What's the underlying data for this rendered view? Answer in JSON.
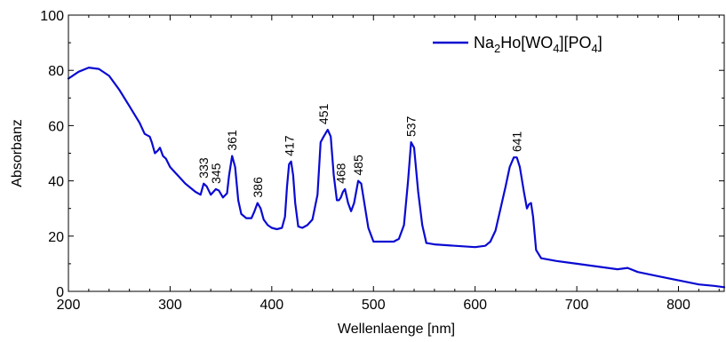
{
  "chart_data": {
    "type": "line",
    "title": "",
    "xlabel": "Wellenlaenge [nm]",
    "ylabel": "Absorbanz",
    "xlim": [
      200,
      845
    ],
    "ylim": [
      0,
      100
    ],
    "x_ticks": [
      200,
      300,
      400,
      500,
      600,
      700,
      800
    ],
    "y_ticks": [
      0,
      20,
      40,
      60,
      80,
      100
    ],
    "x_tick_labels": [
      "200",
      "300",
      "400",
      "500",
      "600",
      "700",
      "800"
    ],
    "y_tick_labels": [
      "0",
      "20",
      "40",
      "60",
      "80",
      "100"
    ],
    "grid": false,
    "legend": {
      "position": "top-right",
      "parts": [
        {
          "t": "Na",
          "sub": false
        },
        {
          "t": "2",
          "sub": true
        },
        {
          "t": "Ho[WO",
          "sub": false
        },
        {
          "t": "4",
          "sub": true
        },
        {
          "t": "][PO",
          "sub": false
        },
        {
          "t": "4",
          "sub": true
        },
        {
          "t": "]",
          "sub": false
        }
      ]
    },
    "series": [
      {
        "color": "#0a0ad2",
        "points": [
          [
            200,
            77
          ],
          [
            210,
            79.5
          ],
          [
            220,
            81
          ],
          [
            230,
            80.5
          ],
          [
            240,
            78
          ],
          [
            250,
            73
          ],
          [
            260,
            67
          ],
          [
            270,
            61
          ],
          [
            275,
            57
          ],
          [
            280,
            56
          ],
          [
            282,
            54
          ],
          [
            285,
            50
          ],
          [
            288,
            51
          ],
          [
            290,
            52
          ],
          [
            293,
            49
          ],
          [
            296,
            48
          ],
          [
            300,
            45
          ],
          [
            305,
            43
          ],
          [
            310,
            41
          ],
          [
            315,
            39
          ],
          [
            320,
            37.5
          ],
          [
            325,
            36
          ],
          [
            330,
            35
          ],
          [
            333,
            39
          ],
          [
            336,
            38
          ],
          [
            340,
            35
          ],
          [
            345,
            37
          ],
          [
            348,
            36.5
          ],
          [
            352,
            34
          ],
          [
            356,
            35.5
          ],
          [
            358,
            42
          ],
          [
            361,
            49
          ],
          [
            364,
            45
          ],
          [
            367,
            33
          ],
          [
            370,
            28
          ],
          [
            375,
            26.5
          ],
          [
            380,
            26.5
          ],
          [
            383,
            29
          ],
          [
            386,
            32
          ],
          [
            389,
            30
          ],
          [
            392,
            26
          ],
          [
            396,
            24
          ],
          [
            400,
            23
          ],
          [
            405,
            22.5
          ],
          [
            410,
            23
          ],
          [
            413,
            27
          ],
          [
            415,
            38
          ],
          [
            417,
            46
          ],
          [
            419,
            47
          ],
          [
            421,
            42
          ],
          [
            423,
            32
          ],
          [
            426,
            23.5
          ],
          [
            430,
            23
          ],
          [
            435,
            24
          ],
          [
            440,
            26
          ],
          [
            445,
            35
          ],
          [
            448,
            54
          ],
          [
            451,
            56
          ],
          [
            455,
            58.5
          ],
          [
            458,
            56
          ],
          [
            461,
            42
          ],
          [
            464,
            33
          ],
          [
            466,
            33
          ],
          [
            468,
            34
          ],
          [
            470,
            36
          ],
          [
            472,
            37
          ],
          [
            475,
            32
          ],
          [
            478,
            29
          ],
          [
            481,
            32
          ],
          [
            485,
            40
          ],
          [
            488,
            39
          ],
          [
            491,
            32
          ],
          [
            495,
            23
          ],
          [
            500,
            18
          ],
          [
            510,
            18
          ],
          [
            520,
            18
          ],
          [
            525,
            19
          ],
          [
            530,
            24
          ],
          [
            534,
            40
          ],
          [
            537,
            54
          ],
          [
            540,
            52
          ],
          [
            544,
            36
          ],
          [
            548,
            24
          ],
          [
            552,
            17.5
          ],
          [
            560,
            17
          ],
          [
            580,
            16.5
          ],
          [
            600,
            16
          ],
          [
            610,
            16.5
          ],
          [
            615,
            18
          ],
          [
            620,
            22
          ],
          [
            625,
            30
          ],
          [
            630,
            38
          ],
          [
            634,
            45
          ],
          [
            638,
            48.5
          ],
          [
            641,
            48.5
          ],
          [
            644,
            45
          ],
          [
            648,
            36
          ],
          [
            651,
            30
          ],
          [
            653,
            31.5
          ],
          [
            655,
            32
          ],
          [
            657,
            27
          ],
          [
            660,
            15
          ],
          [
            665,
            12
          ],
          [
            680,
            11
          ],
          [
            700,
            10
          ],
          [
            720,
            9
          ],
          [
            740,
            8
          ],
          [
            750,
            8.5
          ],
          [
            760,
            7
          ],
          [
            780,
            5.5
          ],
          [
            800,
            4
          ],
          [
            820,
            2.5
          ],
          [
            835,
            2
          ],
          [
            845,
            1.5
          ]
        ]
      }
    ],
    "annotations": [
      {
        "text": "333",
        "x": 333,
        "y": 39
      },
      {
        "text": "345",
        "x": 345,
        "y": 37
      },
      {
        "text": "361",
        "x": 361,
        "y": 49
      },
      {
        "text": "386",
        "x": 386,
        "y": 32
      },
      {
        "text": "417",
        "x": 417,
        "y": 47
      },
      {
        "text": "451",
        "x": 451,
        "y": 58.5
      },
      {
        "text": "468",
        "x": 468,
        "y": 37
      },
      {
        "text": "485",
        "x": 485,
        "y": 40
      },
      {
        "text": "537",
        "x": 537,
        "y": 54
      },
      {
        "text": "641",
        "x": 641,
        "y": 48.5
      }
    ]
  }
}
